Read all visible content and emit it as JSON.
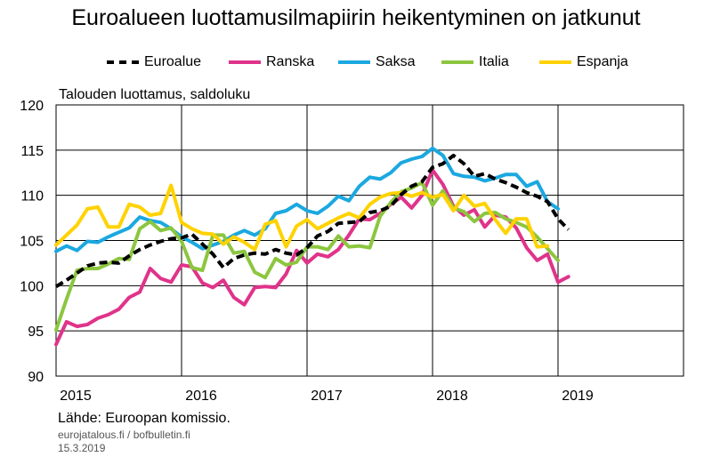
{
  "title": "Euroalueen luottamusilmapiirin heikentyminen on jatkunut",
  "legend": [
    {
      "name": "Euroalue",
      "color": "#000000",
      "dash": "dashed"
    },
    {
      "name": "Ranska",
      "color": "#E0338A",
      "dash": "solid"
    },
    {
      "name": "Saksa",
      "color": "#1BA8E0",
      "dash": "solid"
    },
    {
      "name": "Italia",
      "color": "#8CC63F",
      "dash": "solid"
    },
    {
      "name": "Espanja",
      "color": "#FFD200",
      "dash": "solid"
    }
  ],
  "footer": {
    "source": "Lähde: Euroopan komissio.",
    "credit": "eurojatalous.fi / bofbulletin.fi",
    "date": "15.3.2019"
  },
  "chart_data": {
    "type": "line",
    "ylabel": "Talouden luottamus, saldoluku",
    "ylim": [
      90,
      120
    ],
    "yticks": [
      90,
      95,
      100,
      105,
      110,
      115,
      120
    ],
    "xlim": [
      2015,
      2020
    ],
    "xticks": [
      2015,
      2016,
      2017,
      2018,
      2019
    ],
    "grid": true,
    "legend_position": "top",
    "x_start": 2015.0,
    "x_step": 0.08333333,
    "series": [
      {
        "name": "Euroalue",
        "color": "#000000",
        "style": "dashed",
        "values": [
          99.9,
          100.6,
          101.4,
          102.2,
          102.5,
          102.6,
          102.5,
          103.3,
          104.0,
          104.5,
          104.9,
          105.2,
          105.3,
          105.7,
          104.6,
          103.5,
          102.0,
          103.0,
          103.4,
          103.6,
          103.5,
          104.0,
          103.6,
          103.4,
          104.2,
          105.5,
          106.0,
          106.9,
          107.0,
          107.1,
          108.1,
          108.3,
          108.8,
          110.1,
          111.0,
          111.5,
          113.1,
          113.5,
          114.4,
          113.5,
          112.1,
          112.4,
          111.8,
          111.4,
          110.9,
          110.3,
          109.9,
          109.3,
          107.4,
          106.2
        ]
      },
      {
        "name": "Ranska",
        "color": "#E0338A",
        "style": "solid",
        "values": [
          93.5,
          96.0,
          95.5,
          95.7,
          96.4,
          96.8,
          97.4,
          98.7,
          99.3,
          101.9,
          100.8,
          100.4,
          102.3,
          102.1,
          100.3,
          99.8,
          100.6,
          98.7,
          97.9,
          99.8,
          99.9,
          99.8,
          101.3,
          103.9,
          102.5,
          103.5,
          103.2,
          104.0,
          105.6,
          107.4,
          107.3,
          108.0,
          109.0,
          109.8,
          108.6,
          110.0,
          112.8,
          111.2,
          108.8,
          107.8,
          108.4,
          106.5,
          107.8,
          107.6,
          106.4,
          104.2,
          102.8,
          103.5,
          100.4,
          101.0
        ]
      },
      {
        "name": "Saksa",
        "color": "#1BA8E0",
        "style": "solid",
        "values": [
          103.8,
          104.4,
          103.9,
          104.9,
          104.8,
          105.4,
          105.9,
          106.4,
          107.6,
          107.2,
          107.0,
          106.3,
          105.4,
          104.8,
          104.1,
          104.5,
          104.9,
          105.6,
          106.1,
          105.6,
          106.3,
          108.0,
          108.3,
          109.0,
          108.3,
          108.0,
          108.8,
          109.9,
          109.4,
          111.0,
          112.0,
          111.8,
          112.5,
          113.6,
          114.0,
          114.3,
          115.2,
          114.4,
          112.4,
          112.1,
          112.0,
          111.6,
          111.9,
          112.3,
          112.3,
          111.0,
          111.5,
          109.3,
          108.5
        ]
      },
      {
        "name": "Italia",
        "color": "#8CC63F",
        "style": "solid",
        "values": [
          95.1,
          98.5,
          101.7,
          101.9,
          101.9,
          102.4,
          103.0,
          102.9,
          106.3,
          107.1,
          106.1,
          106.4,
          104.9,
          102.0,
          101.7,
          105.6,
          105.6,
          103.6,
          103.8,
          101.5,
          100.9,
          103.0,
          102.3,
          102.6,
          104.3,
          104.3,
          104.0,
          105.5,
          104.3,
          104.4,
          104.2,
          107.7,
          109.2,
          110.4,
          110.8,
          111.4,
          108.9,
          110.5,
          108.6,
          108.2,
          107.1,
          108.0,
          108.1,
          107.4,
          107.0,
          106.5,
          105.4,
          104.1,
          102.8
        ]
      },
      {
        "name": "Espanja",
        "color": "#FFD200",
        "style": "solid",
        "values": [
          104.5,
          105.6,
          106.7,
          108.5,
          108.7,
          106.5,
          106.5,
          109.0,
          108.7,
          107.8,
          108.0,
          111.1,
          107.0,
          106.3,
          105.8,
          105.7,
          104.6,
          105.4,
          104.8,
          104.0,
          106.8,
          107.2,
          104.3,
          106.6,
          107.3,
          106.3,
          106.9,
          107.5,
          108.0,
          107.5,
          109.0,
          109.8,
          110.2,
          110.3,
          109.9,
          110.3,
          109.8,
          110.1,
          108.3,
          110.0,
          108.8,
          109.1,
          107.3,
          105.8,
          107.4,
          107.4,
          104.3,
          104.4
        ]
      }
    ]
  }
}
